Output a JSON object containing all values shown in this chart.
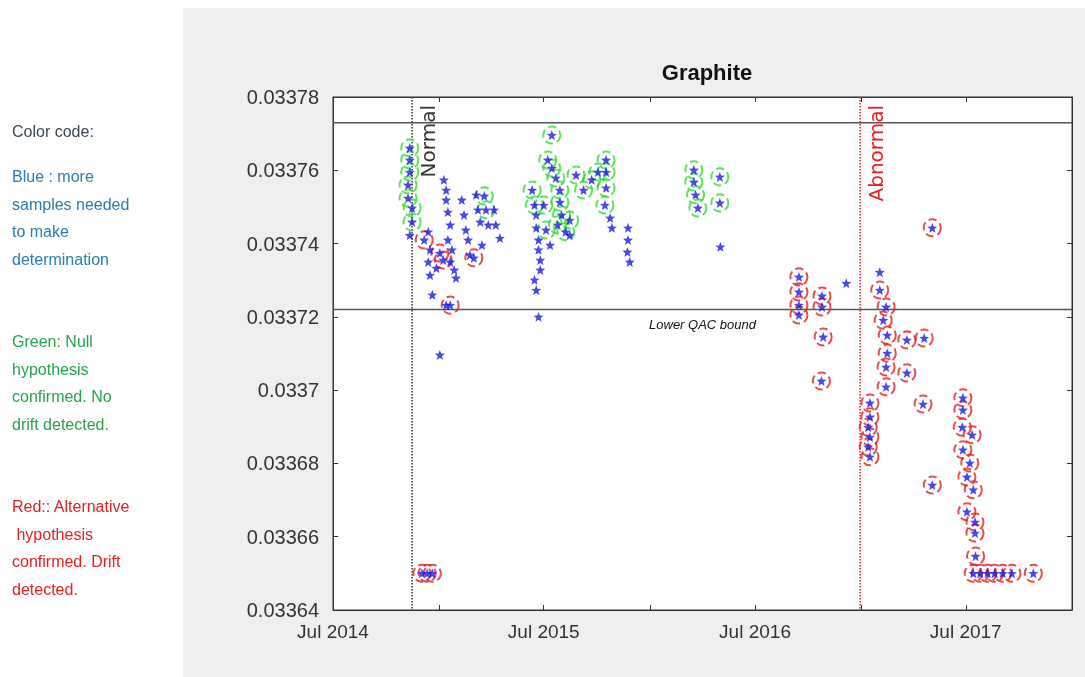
{
  "chart_data": {
    "type": "scatter",
    "title": "Graphite",
    "xlim": [
      "2014-07-01",
      "2018-01-01"
    ],
    "xticks": [
      {
        "value": "2014-07-01",
        "label": "Jul 2014"
      },
      {
        "value": "2015-01-01",
        "label": null
      },
      {
        "value": "2015-07-01",
        "label": "Jul 2015"
      },
      {
        "value": "2016-01-01",
        "label": null
      },
      {
        "value": "2016-07-01",
        "label": "Jul 2016"
      },
      {
        "value": "2017-01-01",
        "label": null
      },
      {
        "value": "2017-07-01",
        "label": "Jul 2017"
      },
      {
        "value": "2018-01-01",
        "label": null
      }
    ],
    "ylim": [
      0.03364,
      0.03378
    ],
    "yticks": [
      0.03364,
      0.03366,
      0.03368,
      0.0337,
      0.03372,
      0.03374,
      0.03376,
      0.03378
    ],
    "series": [
      {
        "color": "#33dd33",
        "marker": "circle",
        "x": [
          "2014-11-11",
          "2014-11-11",
          "2014-11-11",
          "2014-11-08",
          "2014-11-08",
          "2014-11-15",
          "2014-11-15",
          "2015-03-20",
          "2015-03-23",
          "2015-06-11",
          "2015-06-15",
          "2015-07-15",
          "2015-07-08",
          "2015-07-15",
          "2015-07-22",
          "2015-07-29",
          "2015-07-29",
          "2015-08-01",
          "2015-07-25",
          "2015-08-08",
          "2015-08-15",
          "2015-07-01",
          "2015-07-05",
          "2015-08-26",
          "2015-09-08",
          "2015-09-22",
          "2015-10-03",
          "2015-10-17",
          "2015-10-17",
          "2015-10-17",
          "2015-10-15",
          "2016-03-17",
          "2016-03-17",
          "2016-03-20",
          "2016-03-24",
          "2016-05-01",
          "2016-05-01"
        ],
        "values": [
          0.0337661,
          0.0337628,
          0.0337595,
          0.033756,
          0.0337524,
          0.0337497,
          0.0337459,
          0.033753,
          0.0337492,
          0.0337546,
          0.0337505,
          0.0337696,
          0.0337628,
          0.0337606,
          0.0337579,
          0.0337546,
          0.0337513,
          0.0337478,
          0.0337451,
          0.0337432,
          0.0337464,
          0.0337505,
          0.0337437,
          0.0337587,
          0.0337546,
          0.0337574,
          0.0337595,
          0.0337628,
          0.0337595,
          0.0337552,
          0.0337505,
          0.0337601,
          0.0337568,
          0.0337533,
          0.0337497,
          0.0337582,
          0.0337511
        ]
      },
      {
        "color": "#e62020",
        "marker": "circle",
        "x": [
          "2014-12-06",
          "2015-01-02",
          "2015-01-08",
          "2015-03-02",
          "2015-01-20",
          "2014-12-11",
          "2014-12-20",
          "2014-12-02",
          "2016-09-15",
          "2016-09-15",
          "2016-09-15",
          "2016-09-15",
          "2016-10-25",
          "2016-10-25",
          "2016-10-27",
          "2016-10-24",
          "2017-01-16",
          "2017-01-16",
          "2017-01-13",
          "2017-01-16",
          "2017-01-13",
          "2017-01-16",
          "2017-02-02",
          "2017-02-13",
          "2017-02-08",
          "2017-02-15",
          "2017-02-15",
          "2017-02-13",
          "2017-02-13",
          "2017-03-21",
          "2017-04-20",
          "2017-03-21",
          "2017-04-18",
          "2017-05-04",
          "2017-05-04",
          "2017-06-26",
          "2017-06-26",
          "2017-06-25",
          "2017-07-12",
          "2017-06-26",
          "2017-07-08",
          "2017-07-03",
          "2017-07-14",
          "2017-07-03",
          "2017-07-17",
          "2017-07-17",
          "2017-07-18",
          "2017-07-14",
          "2017-07-26",
          "2017-08-08",
          "2017-08-20",
          "2017-09-03",
          "2017-09-19",
          "2017-10-26"
        ],
        "values": [
          0.033741,
          0.0337374,
          0.0337355,
          0.0337361,
          0.0337232,
          0.03365,
          0.03365,
          0.03365,
          0.0337309,
          0.0337268,
          0.0337232,
          0.0337205,
          0.0337257,
          0.0337227,
          0.0337145,
          0.0337025,
          0.0336965,
          0.0336927,
          0.0336899,
          0.0336872,
          0.0336845,
          0.0336818,
          0.0337273,
          0.0337227,
          0.0337191,
          0.033715,
          0.0337101,
          0.0337063,
          0.0337009,
          0.0337137,
          0.0337142,
          0.0337047,
          0.0336962,
          0.0337443,
          0.0336741,
          0.0336979,
          0.0336946,
          0.0336899,
          0.0336878,
          0.0336837,
          0.0336801,
          0.0336763,
          0.0336728,
          0.0336668,
          0.033664,
          0.033661,
          0.0336547,
          0.03365,
          0.03365,
          0.03365,
          0.03365,
          0.03365,
          0.03365,
          0.03365
        ]
      },
      {
        "color": "#1a1ae6",
        "marker": "star",
        "x": [
          "2014-11-11",
          "2014-11-11",
          "2014-11-11",
          "2014-11-08",
          "2014-11-08",
          "2014-11-15",
          "2014-11-15",
          "2014-11-11",
          "2014-12-06",
          "2014-12-13",
          "2014-12-16",
          "2014-12-13",
          "2014-12-16",
          "2014-12-20",
          "2015-01-02",
          "2015-01-09",
          "2015-01-13",
          "2015-01-13",
          "2015-01-16",
          "2015-01-20",
          "2015-01-16",
          "2015-01-23",
          "2015-01-20",
          "2015-01-27",
          "2015-01-30",
          "2015-01-13",
          "2015-02-09",
          "2015-02-13",
          "2015-02-16",
          "2015-02-20",
          "2015-02-23",
          "2015-03-02",
          "2015-03-06",
          "2015-03-09",
          "2015-03-13",
          "2015-03-16",
          "2015-03-20",
          "2015-03-23",
          "2015-03-27",
          "2015-04-06",
          "2015-04-09",
          "2015-04-16",
          "2014-12-27",
          "2014-12-11",
          "2014-12-20",
          "2014-12-02",
          "2015-01-02",
          "2015-01-08",
          "2015-01-20",
          "2015-06-11",
          "2015-06-15",
          "2015-06-18",
          "2015-06-18",
          "2015-06-22",
          "2015-06-22",
          "2015-06-25",
          "2015-06-25",
          "2015-06-15",
          "2015-06-18",
          "2015-06-22",
          "2015-07-15",
          "2015-07-08",
          "2015-07-15",
          "2015-07-22",
          "2015-07-29",
          "2015-07-29",
          "2015-08-01",
          "2015-07-25",
          "2015-08-08",
          "2015-08-15",
          "2015-08-15",
          "2015-07-01",
          "2015-07-05",
          "2015-07-12",
          "2015-08-26",
          "2015-09-08",
          "2015-09-22",
          "2015-10-03",
          "2015-10-17",
          "2015-10-17",
          "2015-10-17",
          "2015-10-15",
          "2015-10-24",
          "2015-10-27",
          "2015-11-24",
          "2015-11-24",
          "2015-11-23",
          "2015-11-27",
          "2016-03-17",
          "2016-03-17",
          "2016-03-20",
          "2016-03-24",
          "2016-05-01",
          "2016-05-01",
          "2016-05-02",
          "2016-09-15",
          "2016-09-15",
          "2016-09-15",
          "2016-09-15",
          "2016-10-25",
          "2016-10-25",
          "2016-10-27",
          "2016-10-24",
          "2016-12-06",
          "2017-01-16",
          "2017-01-16",
          "2017-01-13",
          "2017-01-16",
          "2017-01-13",
          "2017-01-16",
          "2017-02-02",
          "2017-02-02",
          "2017-02-13",
          "2017-02-08",
          "2017-02-15",
          "2017-02-15",
          "2017-02-13",
          "2017-02-13",
          "2017-03-21",
          "2017-04-20",
          "2017-03-21",
          "2017-04-18",
          "2017-05-04",
          "2017-05-04",
          "2017-06-26",
          "2017-06-26",
          "2017-06-25",
          "2017-07-12",
          "2017-06-26",
          "2017-07-08",
          "2017-07-03",
          "2017-07-14",
          "2017-07-03",
          "2017-07-17",
          "2017-07-17",
          "2017-07-18",
          "2017-07-14",
          "2017-07-26",
          "2017-08-08",
          "2017-08-20",
          "2017-09-03",
          "2017-09-19",
          "2017-10-26"
        ],
        "values": [
          0.0337661,
          0.0337628,
          0.0337595,
          0.033756,
          0.0337524,
          0.0337497,
          0.0337459,
          0.0337423,
          0.033741,
          0.0337432,
          0.0337383,
          0.033735,
          0.0337314,
          0.033726,
          0.0337096,
          0.0337574,
          0.0337546,
          0.0337519,
          0.0337486,
          0.0337451,
          0.033741,
          0.0337383,
          0.033735,
          0.0337328,
          0.0337306,
          0.0337232,
          0.0337519,
          0.0337478,
          0.0337437,
          0.033741,
          0.0337369,
          0.0337361,
          0.0337533,
          0.0337492,
          0.0337459,
          0.0337396,
          0.033753,
          0.0337492,
          0.0337451,
          0.0337492,
          0.0337451,
          0.0337415,
          0.0337333,
          0.03365,
          0.03365,
          0.03365,
          0.0337374,
          0.0337355,
          0.0337232,
          0.0337546,
          0.0337505,
          0.0337478,
          0.0337443,
          0.033741,
          0.0337383,
          0.0337355,
          0.0337328,
          0.0337301,
          0.0337273,
          0.03372,
          0.0337696,
          0.0337628,
          0.0337606,
          0.0337579,
          0.0337546,
          0.0337513,
          0.0337478,
          0.0337451,
          0.0337432,
          0.0337464,
          0.0337423,
          0.0337505,
          0.0337437,
          0.0337396,
          0.0337587,
          0.0337546,
          0.0337574,
          0.0337595,
          0.0337628,
          0.0337595,
          0.0337552,
          0.0337505,
          0.033747,
          0.0337443,
          0.0337443,
          0.033741,
          0.0337377,
          0.033735,
          0.0337601,
          0.0337568,
          0.0337533,
          0.0337497,
          0.0337582,
          0.0337511,
          0.0337391,
          0.0337309,
          0.0337268,
          0.0337232,
          0.0337205,
          0.0337257,
          0.0337227,
          0.0337145,
          0.0337025,
          0.0337292,
          0.0336965,
          0.0336927,
          0.0336899,
          0.0336872,
          0.0336845,
          0.0336818,
          0.0337322,
          0.0337273,
          0.0337227,
          0.0337191,
          0.033715,
          0.0337101,
          0.0337063,
          0.0337009,
          0.0337137,
          0.0337142,
          0.0337047,
          0.0336962,
          0.0337443,
          0.0336741,
          0.0336979,
          0.0336946,
          0.0336899,
          0.0336878,
          0.0336837,
          0.0336801,
          0.0336763,
          0.0336728,
          0.0336668,
          0.033664,
          0.033661,
          0.0336547,
          0.03365,
          0.03365,
          0.03365,
          0.03365,
          0.03365,
          0.03365,
          0.03365
        ]
      }
    ],
    "ref_lines": [
      {
        "axis": "y",
        "value": 0.033773,
        "label": null,
        "color": "#555555",
        "line_style": "solid"
      },
      {
        "axis": "y",
        "value": 0.033722,
        "label": "Lower QAC bound",
        "color": "#555555",
        "line_style": "solid"
      },
      {
        "axis": "x",
        "value": "2014-11-15",
        "label": "Normal",
        "color": "#333333",
        "line_style": "dotted"
      },
      {
        "axis": "x",
        "value": "2016-12-30",
        "label": "Abnormal",
        "color": "#e62020",
        "line_style": "dotted"
      }
    ],
    "annotations": [
      "Color code:",
      "Blue : more samples needed to make determination",
      "Green: Null hypothesis confirmed. No drift detected.",
      "Red:: Alternative hypothesis confirmed. Drift detected."
    ]
  }
}
